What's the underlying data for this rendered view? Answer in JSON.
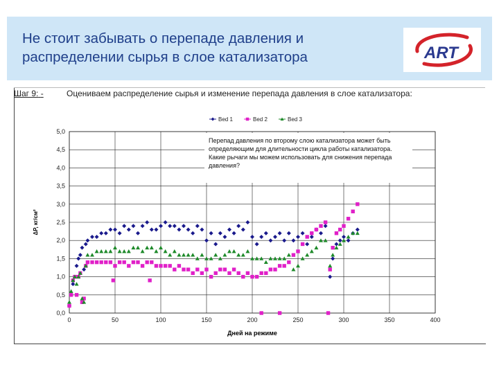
{
  "slide": {
    "title_line1": "Не стоит забывать о перепаде давления и",
    "title_line2": "распределении сырья в слое катализатора",
    "logo_text": "ART",
    "step_label": "Шаг 9:",
    "step_dash": "-",
    "step_text": "Оцениваем распределение сырья и изменение перепада давления в слое катализатора:"
  },
  "chart_data": {
    "type": "scatter",
    "xlabel": "Дней на режиме",
    "ylabel": "ΔP, кг/см²",
    "xlim": [
      0,
      400
    ],
    "ylim": [
      0,
      5
    ],
    "xticks": [
      "0",
      "50",
      "100",
      "150",
      "200",
      "250",
      "300",
      "350",
      "400"
    ],
    "yticks": [
      "0,0",
      "0,5",
      "1,0",
      "1,5",
      "2,0",
      "2,5",
      "3,0",
      "3,5",
      "4,0",
      "4,5",
      "5,0"
    ],
    "legend_position": "top",
    "grid": true,
    "annotation": "Перепад давления по второму слою катализатора может быть определяющим для длительности цикла работы катализатора. Какие рычаги мы можем использовать для снижения перепада давления?",
    "series": [
      {
        "name": "Bed 1",
        "marker": "diamond",
        "color": "#1a1a8c",
        "points": [
          [
            0,
            0.2
          ],
          [
            2,
            0.5
          ],
          [
            4,
            0.8
          ],
          [
            6,
            1.0
          ],
          [
            8,
            1.3
          ],
          [
            10,
            1.5
          ],
          [
            12,
            1.6
          ],
          [
            14,
            1.8
          ],
          [
            16,
            1.2
          ],
          [
            18,
            1.9
          ],
          [
            20,
            2.0
          ],
          [
            25,
            2.1
          ],
          [
            30,
            2.1
          ],
          [
            35,
            2.2
          ],
          [
            40,
            2.2
          ],
          [
            45,
            2.3
          ],
          [
            50,
            2.3
          ],
          [
            55,
            2.2
          ],
          [
            60,
            2.4
          ],
          [
            65,
            2.3
          ],
          [
            70,
            2.4
          ],
          [
            75,
            2.2
          ],
          [
            80,
            2.4
          ],
          [
            85,
            2.5
          ],
          [
            90,
            2.3
          ],
          [
            95,
            2.3
          ],
          [
            100,
            2.4
          ],
          [
            105,
            2.5
          ],
          [
            110,
            2.4
          ],
          [
            115,
            2.4
          ],
          [
            120,
            2.3
          ],
          [
            125,
            2.4
          ],
          [
            130,
            2.3
          ],
          [
            135,
            2.2
          ],
          [
            140,
            2.4
          ],
          [
            145,
            2.3
          ],
          [
            150,
            2.0
          ],
          [
            155,
            2.2
          ],
          [
            160,
            1.9
          ],
          [
            165,
            2.2
          ],
          [
            170,
            2.1
          ],
          [
            175,
            2.3
          ],
          [
            180,
            2.2
          ],
          [
            185,
            2.4
          ],
          [
            190,
            2.3
          ],
          [
            195,
            2.5
          ],
          [
            200,
            2.1
          ],
          [
            205,
            1.9
          ],
          [
            210,
            2.1
          ],
          [
            215,
            2.2
          ],
          [
            220,
            2.0
          ],
          [
            225,
            2.1
          ],
          [
            230,
            2.2
          ],
          [
            235,
            2.0
          ],
          [
            240,
            2.2
          ],
          [
            245,
            2.0
          ],
          [
            250,
            2.1
          ],
          [
            255,
            2.2
          ],
          [
            260,
            1.9
          ],
          [
            265,
            2.1
          ],
          [
            270,
            2.3
          ],
          [
            275,
            2.2
          ],
          [
            280,
            2.4
          ],
          [
            285,
            1.0
          ],
          [
            288,
            1.5
          ],
          [
            292,
            1.9
          ],
          [
            296,
            2.0
          ],
          [
            300,
            2.1
          ],
          [
            305,
            2.0
          ],
          [
            310,
            2.2
          ],
          [
            315,
            2.3
          ]
        ]
      },
      {
        "name": "Bed 2",
        "marker": "square",
        "color": "#e020c8",
        "points": [
          [
            0,
            0.2
          ],
          [
            2,
            0.5
          ],
          [
            4,
            0.9
          ],
          [
            6,
            1.0
          ],
          [
            8,
            0.5
          ],
          [
            10,
            1.0
          ],
          [
            12,
            1.1
          ],
          [
            14,
            0.3
          ],
          [
            16,
            0.4
          ],
          [
            18,
            1.3
          ],
          [
            20,
            1.4
          ],
          [
            25,
            1.4
          ],
          [
            30,
            1.4
          ],
          [
            35,
            1.4
          ],
          [
            40,
            1.4
          ],
          [
            45,
            1.4
          ],
          [
            48,
            0.9
          ],
          [
            50,
            1.3
          ],
          [
            55,
            1.4
          ],
          [
            60,
            1.4
          ],
          [
            65,
            1.3
          ],
          [
            70,
            1.4
          ],
          [
            75,
            1.4
          ],
          [
            80,
            1.3
          ],
          [
            85,
            1.4
          ],
          [
            88,
            0.9
          ],
          [
            90,
            1.4
          ],
          [
            95,
            1.3
          ],
          [
            100,
            1.3
          ],
          [
            105,
            1.3
          ],
          [
            110,
            1.3
          ],
          [
            115,
            1.2
          ],
          [
            120,
            1.3
          ],
          [
            125,
            1.2
          ],
          [
            130,
            1.2
          ],
          [
            135,
            1.1
          ],
          [
            140,
            1.2
          ],
          [
            145,
            1.1
          ],
          [
            150,
            1.2
          ],
          [
            155,
            1.0
          ],
          [
            160,
            1.1
          ],
          [
            165,
            1.2
          ],
          [
            170,
            1.2
          ],
          [
            175,
            1.1
          ],
          [
            180,
            1.2
          ],
          [
            185,
            1.1
          ],
          [
            190,
            1.0
          ],
          [
            195,
            1.1
          ],
          [
            200,
            1.0
          ],
          [
            205,
            1.0
          ],
          [
            210,
            0.0
          ],
          [
            210,
            1.1
          ],
          [
            215,
            1.1
          ],
          [
            220,
            1.2
          ],
          [
            225,
            1.2
          ],
          [
            230,
            0.0
          ],
          [
            230,
            1.3
          ],
          [
            235,
            1.3
          ],
          [
            240,
            1.4
          ],
          [
            245,
            1.6
          ],
          [
            250,
            1.7
          ],
          [
            255,
            1.9
          ],
          [
            260,
            2.1
          ],
          [
            265,
            2.2
          ],
          [
            270,
            2.3
          ],
          [
            275,
            2.4
          ],
          [
            280,
            2.5
          ],
          [
            283,
            0.0
          ],
          [
            285,
            1.2
          ],
          [
            288,
            1.8
          ],
          [
            292,
            2.2
          ],
          [
            296,
            2.3
          ],
          [
            300,
            2.4
          ],
          [
            305,
            2.6
          ],
          [
            310,
            2.8
          ],
          [
            315,
            3.0
          ]
        ]
      },
      {
        "name": "Bed 3",
        "marker": "triangle",
        "color": "#1e8a2a",
        "points": [
          [
            0,
            0.3
          ],
          [
            2,
            0.6
          ],
          [
            4,
            0.9
          ],
          [
            6,
            1.0
          ],
          [
            8,
            0.8
          ],
          [
            10,
            1.0
          ],
          [
            12,
            1.1
          ],
          [
            14,
            0.4
          ],
          [
            16,
            0.3
          ],
          [
            18,
            1.3
          ],
          [
            20,
            1.6
          ],
          [
            25,
            1.6
          ],
          [
            30,
            1.7
          ],
          [
            35,
            1.7
          ],
          [
            40,
            1.7
          ],
          [
            45,
            1.7
          ],
          [
            50,
            1.8
          ],
          [
            55,
            1.7
          ],
          [
            60,
            1.7
          ],
          [
            65,
            1.7
          ],
          [
            70,
            1.8
          ],
          [
            75,
            1.8
          ],
          [
            80,
            1.7
          ],
          [
            85,
            1.8
          ],
          [
            90,
            1.8
          ],
          [
            95,
            1.7
          ],
          [
            100,
            1.8
          ],
          [
            105,
            1.7
          ],
          [
            110,
            1.6
          ],
          [
            115,
            1.7
          ],
          [
            120,
            1.6
          ],
          [
            125,
            1.6
          ],
          [
            130,
            1.6
          ],
          [
            135,
            1.6
          ],
          [
            140,
            1.5
          ],
          [
            145,
            1.6
          ],
          [
            150,
            1.5
          ],
          [
            155,
            1.5
          ],
          [
            160,
            1.6
          ],
          [
            165,
            1.5
          ],
          [
            170,
            1.6
          ],
          [
            175,
            1.7
          ],
          [
            180,
            1.7
          ],
          [
            185,
            1.6
          ],
          [
            190,
            1.6
          ],
          [
            195,
            1.7
          ],
          [
            200,
            1.5
          ],
          [
            205,
            1.5
          ],
          [
            210,
            1.5
          ],
          [
            215,
            1.4
          ],
          [
            220,
            1.5
          ],
          [
            225,
            1.5
          ],
          [
            230,
            1.5
          ],
          [
            235,
            1.5
          ],
          [
            240,
            1.6
          ],
          [
            245,
            1.2
          ],
          [
            250,
            1.3
          ],
          [
            255,
            1.5
          ],
          [
            260,
            1.6
          ],
          [
            265,
            1.7
          ],
          [
            270,
            1.8
          ],
          [
            275,
            2.0
          ],
          [
            280,
            2.0
          ],
          [
            285,
            1.3
          ],
          [
            288,
            1.6
          ],
          [
            292,
            1.8
          ],
          [
            296,
            1.9
          ],
          [
            300,
            2.0
          ],
          [
            305,
            2.1
          ],
          [
            310,
            2.2
          ],
          [
            315,
            2.2
          ]
        ]
      }
    ]
  }
}
